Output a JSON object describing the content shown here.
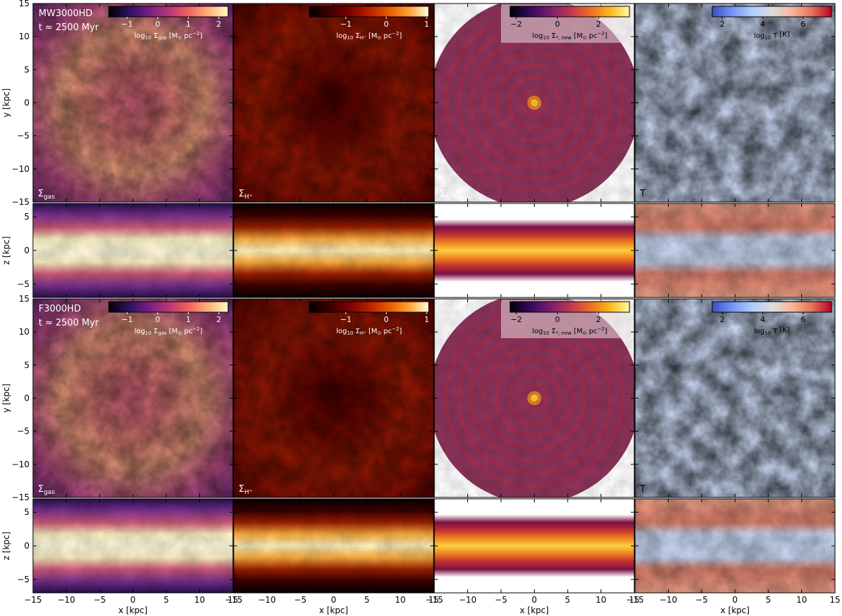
{
  "chart_data": {
    "type": "heatmap",
    "layout": {
      "columns": 4,
      "blocks": 2,
      "rows_per_block": [
        "face-on",
        "edge-on"
      ]
    },
    "x_axis": {
      "label": "x [kpc]",
      "range": [
        -15,
        15
      ],
      "ticks": [
        -15,
        -10,
        -5,
        0,
        5,
        10,
        15
      ]
    },
    "y_axis_faceon": {
      "label": "y [kpc]",
      "range": [
        -15,
        15
      ],
      "ticks": [
        -15,
        -10,
        -5,
        0,
        5,
        10,
        15
      ]
    },
    "z_axis_edgeon": {
      "label": "z [kpc]",
      "range": [
        -7,
        7
      ],
      "ticks": [
        -5,
        0,
        5
      ]
    },
    "blocks": [
      {
        "model": "MW3000HD",
        "time": "t ≈ 2500 Myr"
      },
      {
        "model": "F3000HD",
        "time": "t ≈ 2500 Myr"
      }
    ],
    "panels": [
      {
        "quantity_label": "Σ",
        "quantity_sub": "gas",
        "colormap": "magma",
        "colorbar": {
          "label_prefix": "log",
          "label_base_sub": "10",
          "label_sym": "Σ",
          "label_sym_sub": "gas",
          "label_unit": "[M",
          "label_unit_sub": "⊙",
          "label_unit_rest": "pc",
          "label_unit_sup": "−2",
          "label_close": "]",
          "range": [
            -1.6,
            2.3
          ],
          "ticks": [
            {
              "v": -1,
              "t": "−1"
            },
            {
              "v": 0,
              "t": "0"
            },
            {
              "v": 1,
              "t": "1"
            },
            {
              "v": 2,
              "t": "2"
            }
          ]
        }
      },
      {
        "quantity_label": "Σ",
        "quantity_sub": "H⁺",
        "colormap": "gist_heat",
        "colorbar": {
          "label_prefix": "log",
          "label_base_sub": "10",
          "label_sym": "Σ",
          "label_sym_sub": "H⁺",
          "label_unit": "[M",
          "label_unit_sub": "⊙",
          "label_unit_rest": "pc",
          "label_unit_sup": "−2",
          "label_close": "]",
          "range": [
            -1.9,
            1.05
          ],
          "ticks": [
            {
              "v": -1,
              "t": "−1"
            },
            {
              "v": 0,
              "t": "0"
            },
            {
              "v": 1,
              "t": "1"
            }
          ]
        }
      },
      {
        "quantity_label": "Σ",
        "quantity_sub": "*, new",
        "colormap": "inferno",
        "colorbar": {
          "label_prefix": "log",
          "label_base_sub": "10",
          "label_sym": "Σ",
          "label_sym_sub": "*, new",
          "label_unit": "[M",
          "label_unit_sub": "⊙",
          "label_unit_rest": "pc",
          "label_unit_sup": "−2",
          "label_close": "]",
          "range": [
            -2.3,
            3.5
          ],
          "ticks": [
            {
              "v": -2,
              "t": "−2"
            },
            {
              "v": 0,
              "t": "0"
            },
            {
              "v": 2,
              "t": "2"
            }
          ]
        }
      },
      {
        "quantity_label": "T",
        "quantity_sub": "",
        "colormap": "coolwarm",
        "colorbar": {
          "label_prefix": "log",
          "label_base_sub": "10",
          "label_sym": "T",
          "label_sym_sub": "",
          "label_unit": "[K]",
          "label_unit_sub": "",
          "label_unit_rest": "",
          "label_unit_sup": "",
          "label_close": "",
          "range": [
            1.5,
            7.4
          ],
          "ticks": [
            {
              "v": 2,
              "t": "2"
            },
            {
              "v": 4,
              "t": "4"
            },
            {
              "v": 6,
              "t": "6"
            }
          ]
        }
      }
    ]
  }
}
